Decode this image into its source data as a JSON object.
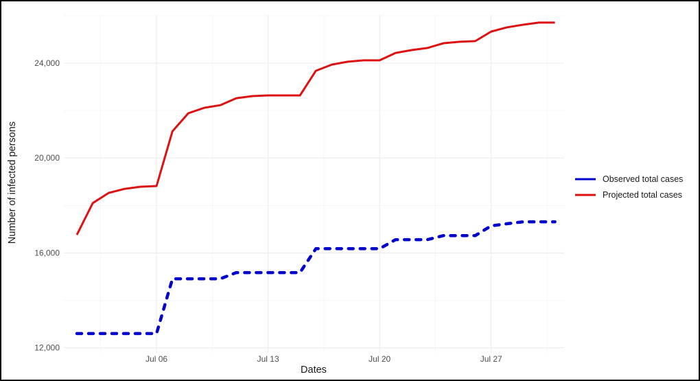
{
  "chart_data": {
    "type": "line",
    "title": "",
    "xlabel": "Dates",
    "ylabel": "Number of infected persons",
    "x_tick_labels": [
      "Jul 06",
      "Jul 13",
      "Jul 20",
      "Jul 27"
    ],
    "y_tick_labels": [
      "12,000",
      "16,000",
      "20,000",
      "24,000"
    ],
    "y_ticks": [
      12000,
      16000,
      20000,
      24000
    ],
    "ylim": [
      12000,
      26500
    ],
    "grid": true,
    "legend_position": "right",
    "x": [
      "Jul 01",
      "Jul 02",
      "Jul 03",
      "Jul 04",
      "Jul 05",
      "Jul 06",
      "Jul 07",
      "Jul 08",
      "Jul 09",
      "Jul 10",
      "Jul 11",
      "Jul 12",
      "Jul 13",
      "Jul 14",
      "Jul 15",
      "Jul 16",
      "Jul 17",
      "Jul 18",
      "Jul 19",
      "Jul 20",
      "Jul 21",
      "Jul 22",
      "Jul 23",
      "Jul 24",
      "Jul 25",
      "Jul 26",
      "Jul 27",
      "Jul 28",
      "Jul 29",
      "Jul 30",
      "Jul 31"
    ],
    "series": [
      {
        "name": "Observed total cases",
        "color": "#0000cc",
        "style": "dotted",
        "values": [
          12600,
          12600,
          12600,
          12600,
          12600,
          12600,
          14910,
          14910,
          14910,
          14910,
          15170,
          15170,
          15170,
          15170,
          15170,
          16180,
          16180,
          16180,
          16180,
          16180,
          16560,
          16560,
          16560,
          16730,
          16730,
          16730,
          17140,
          17230,
          17310,
          17310,
          17310
        ]
      },
      {
        "name": "Projected total cases",
        "color": "#dd1111",
        "style": "solid",
        "values": [
          16760,
          18100,
          18530,
          18700,
          18790,
          18820,
          21130,
          21890,
          22120,
          22230,
          22520,
          22610,
          22640,
          22640,
          22640,
          23680,
          23940,
          24060,
          24120,
          24120,
          24430,
          24550,
          24640,
          24840,
          24900,
          24930,
          25330,
          25510,
          25620,
          25710,
          25710
        ]
      }
    ]
  },
  "legend": {
    "items": [
      {
        "label": "Observed total cases",
        "color": "#0000cc"
      },
      {
        "label": "Projected total cases",
        "color": "#dd1111"
      }
    ]
  }
}
